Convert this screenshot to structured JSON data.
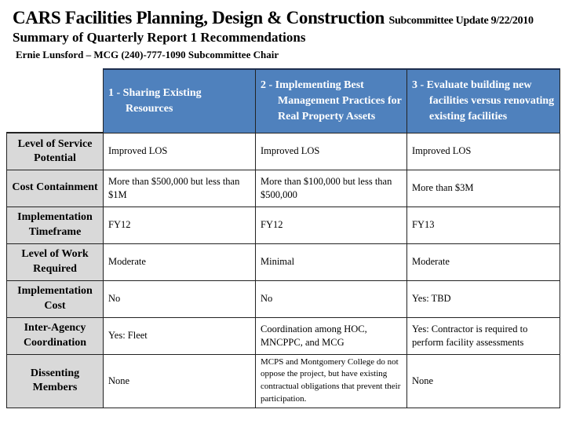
{
  "title": "CARS Facilities Planning, Design & Construction",
  "title_sub": "Subcommittee Update 9/22/2010",
  "subtitle": "Summary of Quarterly Report 1 Recommendations",
  "byline": "Ernie Lunsford – MCG (240)-777-1090 Subcommittee Chair",
  "colors": {
    "header_bg": "#4f81bd",
    "row_header_bg": "#d9d9d9"
  },
  "table": {
    "columns": [
      "1 -  Sharing Existing Resources",
      "2 -  Implementing Best Management Practices for Real Property Assets",
      "3 - Evaluate building new facilities versus renovating existing facilities"
    ],
    "rows": [
      {
        "label": "Level of Service Potential",
        "cells": [
          "Improved LOS",
          "Improved LOS",
          "Improved LOS"
        ]
      },
      {
        "label": "Cost Containment",
        "cells": [
          "More than $500,000 but less than $1M",
          "More than $100,000 but less than $500,000",
          "More than $3M"
        ]
      },
      {
        "label": "Implementation Timeframe",
        "cells": [
          "FY12",
          "FY12",
          "FY13"
        ]
      },
      {
        "label": "Level of Work Required",
        "cells": [
          "Moderate",
          "Minimal",
          "Moderate"
        ]
      },
      {
        "label": "Implementation Cost",
        "cells": [
          "No",
          "No",
          "Yes: TBD"
        ]
      },
      {
        "label": "Inter-Agency Coordination",
        "cells": [
          "Yes: Fleet",
          "Coordination among HOC, MNCPPC, and MCG",
          "Yes: Contractor is required to perform facility assessments"
        ]
      },
      {
        "label": "Dissenting Members",
        "cells": [
          "None",
          "MCPS and Montgomery College do not oppose the project, but have existing contractual obligations that prevent their participation.",
          "None"
        ]
      }
    ]
  }
}
